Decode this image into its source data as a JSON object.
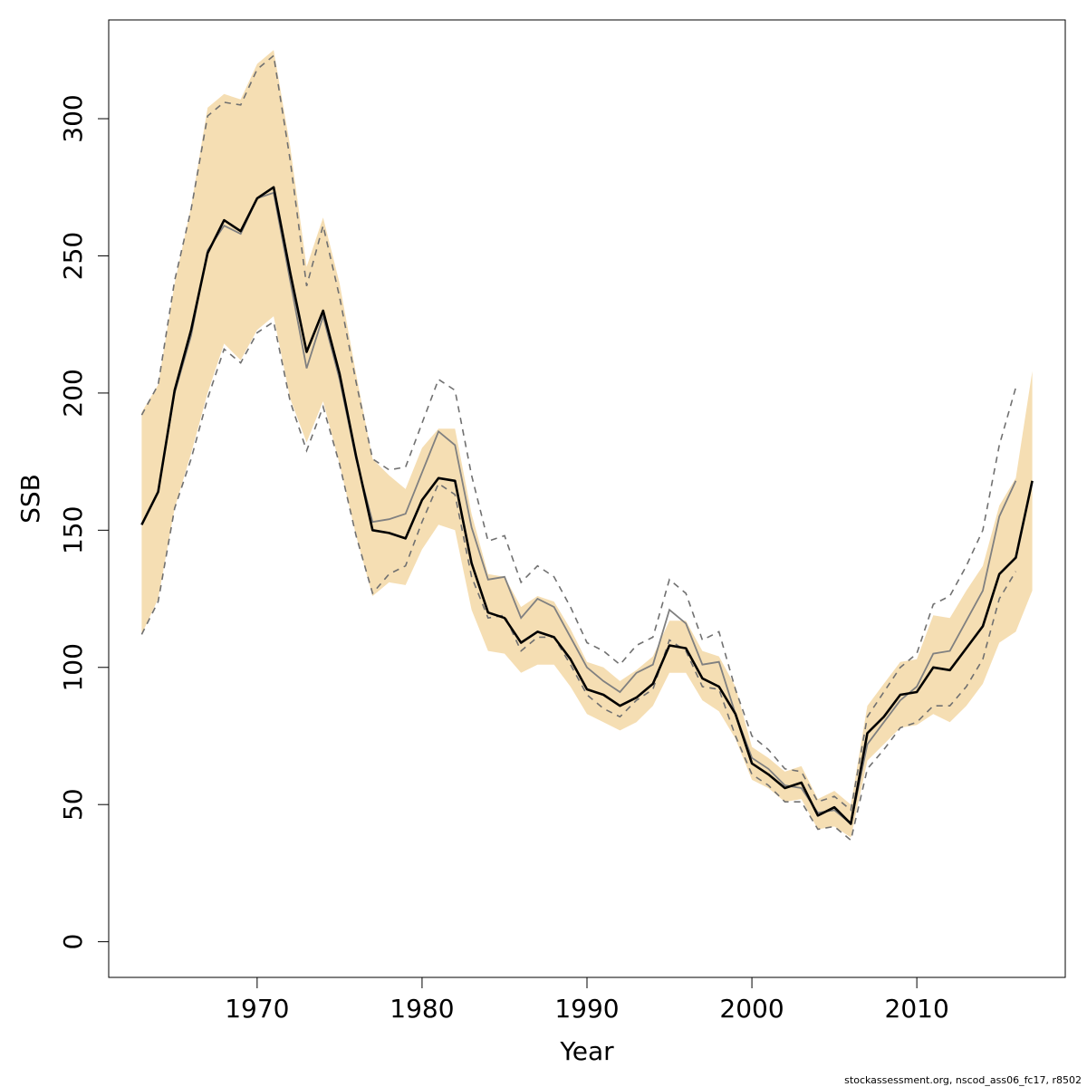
{
  "chart_data": {
    "type": "line",
    "xlabel": "Year",
    "ylabel": "SSB",
    "xlim": [
      1961,
      2019
    ],
    "ylim": [
      -13,
      336
    ],
    "x_ticks": [
      1970,
      1980,
      1990,
      2000,
      2010
    ],
    "y_ticks": [
      0,
      50,
      100,
      150,
      200,
      250,
      300
    ],
    "grid": false,
    "legend": "none",
    "colors": {
      "band_fill": "#f5deb3",
      "current_line": "#000000",
      "previous_line": "#808080",
      "previous_ci": "#707070",
      "axis": "#000000"
    },
    "series": [
      {
        "role": "current_estimate",
        "x": [
          1963,
          1964,
          1965,
          1966,
          1967,
          1968,
          1969,
          1970,
          1971,
          1972,
          1973,
          1974,
          1975,
          1976,
          1977,
          1978,
          1979,
          1980,
          1981,
          1982,
          1983,
          1984,
          1985,
          1986,
          1987,
          1988,
          1989,
          1990,
          1991,
          1992,
          1993,
          1994,
          1995,
          1996,
          1997,
          1998,
          1999,
          2000,
          2001,
          2002,
          2003,
          2004,
          2005,
          2006,
          2007,
          2008,
          2009,
          2010,
          2011,
          2012,
          2013,
          2014,
          2015,
          2016,
          2017
        ],
        "values": [
          152,
          164,
          201,
          223,
          251,
          263,
          259,
          271,
          275,
          244,
          215,
          230,
          207,
          177,
          150,
          149,
          147,
          161,
          169,
          168,
          138,
          120,
          118,
          109,
          113,
          111,
          103,
          92,
          90,
          86,
          89,
          94,
          108,
          107,
          96,
          93,
          83,
          65,
          61,
          56,
          58,
          46,
          49,
          43,
          76,
          82,
          90,
          91,
          100,
          99,
          107,
          115,
          134,
          140,
          168
        ]
      },
      {
        "role": "current_ci_upper",
        "x": [
          1963,
          1964,
          1965,
          1966,
          1967,
          1968,
          1969,
          1970,
          1971,
          1972,
          1973,
          1974,
          1975,
          1976,
          1977,
          1978,
          1979,
          1980,
          1981,
          1982,
          1983,
          1984,
          1985,
          1986,
          1987,
          1988,
          1989,
          1990,
          1991,
          1992,
          1993,
          1994,
          1995,
          1996,
          1997,
          1998,
          1999,
          2000,
          2001,
          2002,
          2003,
          2004,
          2005,
          2006,
          2007,
          2008,
          2009,
          2010,
          2011,
          2012,
          2013,
          2014,
          2015,
          2016,
          2017
        ],
        "values": [
          193,
          203,
          240,
          268,
          304,
          309,
          307,
          320,
          325,
          290,
          246,
          264,
          240,
          207,
          176,
          170,
          165,
          180,
          187,
          187,
          156,
          134,
          133,
          122,
          126,
          124,
          114,
          102,
          100,
          95,
          99,
          104,
          117,
          117,
          106,
          104,
          93,
          71,
          67,
          62,
          64,
          52,
          55,
          50,
          86,
          94,
          102,
          103,
          119,
          118,
          128,
          137,
          159,
          169,
          208
        ]
      },
      {
        "role": "current_ci_lower",
        "x": [
          1963,
          1964,
          1965,
          1966,
          1967,
          1968,
          1969,
          1970,
          1971,
          1972,
          1973,
          1974,
          1975,
          1976,
          1977,
          1978,
          1979,
          1980,
          1981,
          1982,
          1983,
          1984,
          1985,
          1986,
          1987,
          1988,
          1989,
          1990,
          1991,
          1992,
          1993,
          1994,
          1995,
          1996,
          1997,
          1998,
          1999,
          2000,
          2001,
          2002,
          2003,
          2004,
          2005,
          2006,
          2007,
          2008,
          2009,
          2010,
          2011,
          2012,
          2013,
          2014,
          2015,
          2016,
          2017
        ],
        "values": [
          112,
          125,
          158,
          178,
          200,
          218,
          212,
          223,
          228,
          198,
          182,
          197,
          174,
          148,
          126,
          131,
          130,
          143,
          152,
          150,
          121,
          106,
          105,
          98,
          101,
          101,
          93,
          83,
          80,
          77,
          80,
          86,
          98,
          98,
          88,
          84,
          74,
          59,
          56,
          51,
          52,
          41,
          42,
          38,
          66,
          72,
          78,
          79,
          83,
          80,
          86,
          94,
          109,
          113,
          128
        ]
      },
      {
        "role": "previous_estimate",
        "x": [
          1963,
          1964,
          1965,
          1966,
          1967,
          1968,
          1969,
          1970,
          1971,
          1972,
          1973,
          1974,
          1975,
          1976,
          1977,
          1978,
          1979,
          1980,
          1981,
          1982,
          1983,
          1984,
          1985,
          1986,
          1987,
          1988,
          1989,
          1990,
          1991,
          1992,
          1993,
          1994,
          1995,
          1996,
          1997,
          1998,
          1999,
          2000,
          2001,
          2002,
          2003,
          2004,
          2005,
          2006,
          2007,
          2008,
          2009,
          2010,
          2011,
          2012,
          2013,
          2014,
          2015,
          2016
        ],
        "values": [
          152,
          164,
          200,
          221,
          252,
          261,
          258,
          271,
          273,
          241,
          209,
          228,
          205,
          176,
          153,
          154,
          156,
          171,
          186,
          181,
          151,
          132,
          133,
          118,
          125,
          122,
          111,
          100,
          95,
          91,
          98,
          101,
          121,
          116,
          101,
          102,
          83,
          67,
          63,
          57,
          56,
          47,
          48,
          43,
          72,
          80,
          88,
          93,
          105,
          106,
          117,
          128,
          155,
          168
        ]
      },
      {
        "role": "previous_ci_upper",
        "x": [
          1963,
          1964,
          1965,
          1966,
          1967,
          1968,
          1969,
          1970,
          1971,
          1972,
          1973,
          1974,
          1975,
          1976,
          1977,
          1978,
          1979,
          1980,
          1981,
          1982,
          1983,
          1984,
          1985,
          1986,
          1987,
          1988,
          1989,
          1990,
          1991,
          1992,
          1993,
          1994,
          1995,
          1996,
          1997,
          1998,
          1999,
          2000,
          2001,
          2002,
          2003,
          2004,
          2005,
          2006,
          2007,
          2008,
          2009,
          2010,
          2011,
          2012,
          2013,
          2014,
          2015,
          2016
        ],
        "values": [
          192,
          203,
          241,
          267,
          301,
          306,
          305,
          318,
          323,
          285,
          239,
          261,
          235,
          204,
          176,
          172,
          173,
          189,
          205,
          201,
          170,
          146,
          148,
          131,
          137,
          133,
          122,
          109,
          106,
          101,
          108,
          111,
          132,
          127,
          110,
          113,
          92,
          75,
          70,
          63,
          62,
          51,
          53,
          48,
          82,
          91,
          100,
          105,
          123,
          126,
          137,
          150,
          181,
          202
        ]
      },
      {
        "role": "previous_ci_lower",
        "x": [
          1963,
          1964,
          1965,
          1966,
          1967,
          1968,
          1969,
          1970,
          1971,
          1972,
          1973,
          1974,
          1975,
          1976,
          1977,
          1978,
          1979,
          1980,
          1981,
          1982,
          1983,
          1984,
          1985,
          1986,
          1987,
          1988,
          1989,
          1990,
          1991,
          1992,
          1993,
          1994,
          1995,
          1996,
          1997,
          1998,
          1999,
          2000,
          2001,
          2002,
          2003,
          2004,
          2005,
          2006,
          2007,
          2008,
          2009,
          2010,
          2011,
          2012,
          2013,
          2014,
          2015,
          2016
        ],
        "values": [
          112,
          124,
          158,
          176,
          198,
          216,
          211,
          222,
          226,
          197,
          179,
          195,
          174,
          148,
          127,
          134,
          137,
          153,
          167,
          163,
          133,
          118,
          119,
          106,
          111,
          111,
          101,
          90,
          85,
          82,
          88,
          92,
          110,
          106,
          93,
          92,
          75,
          61,
          57,
          51,
          51,
          41,
          42,
          37,
          63,
          70,
          78,
          80,
          86,
          86,
          93,
          103,
          125,
          135
        ]
      }
    ]
  },
  "credit": "stockassessment.org, nscod_ass06_fc17, r8502"
}
